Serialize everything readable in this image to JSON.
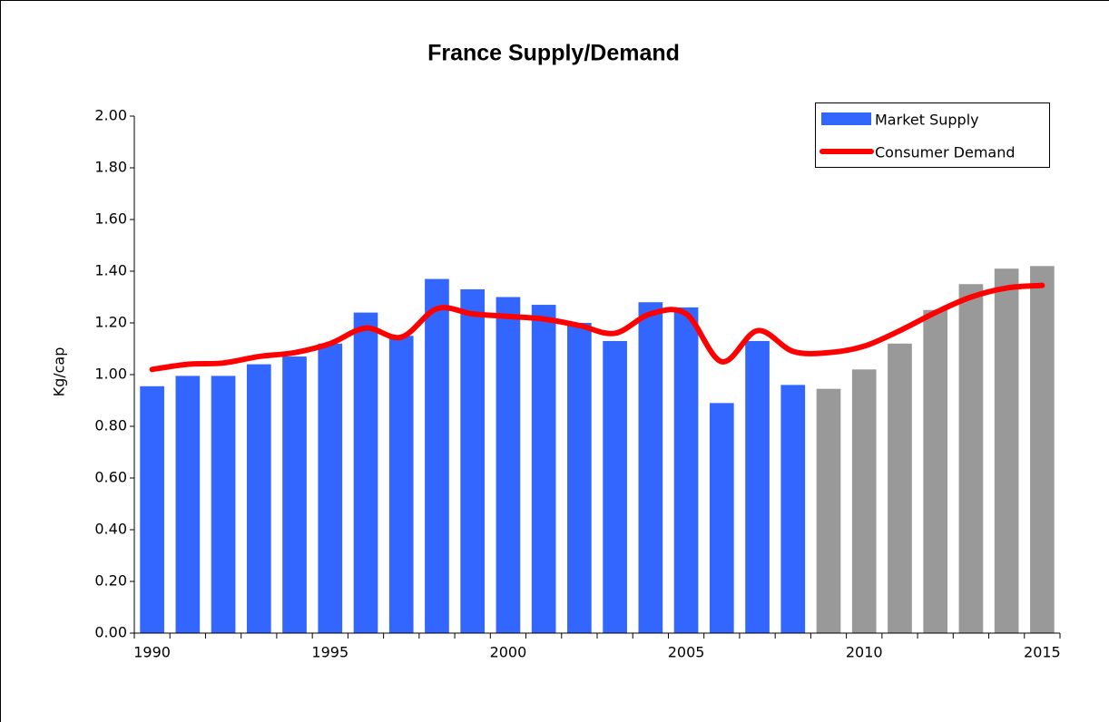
{
  "chart_data": {
    "type": "bar",
    "title": "France Supply/Demand",
    "y_label": "Kg/cap",
    "categories": [
      "1990",
      null,
      null,
      null,
      null,
      "1995",
      null,
      null,
      null,
      null,
      "2000",
      null,
      null,
      null,
      null,
      "2005",
      null,
      null,
      null,
      null,
      "2010",
      null,
      null,
      null,
      null,
      "2015"
    ],
    "series": [
      {
        "name": "Market Supply",
        "color": "#3366ff",
        "colors": [
          "#3366ff",
          "#3366ff",
          "#3366ff",
          "#3366ff",
          "#3366ff",
          "#3366ff",
          "#3366ff",
          "#3366ff",
          "#3366ff",
          "#3366ff",
          "#3366ff",
          "#3366ff",
          "#3366ff",
          "#3366ff",
          "#3366ff",
          "#3366ff",
          "#3366ff",
          "#3366ff",
          "#3366ff",
          "#999999",
          "#999999",
          "#999999",
          "#999999",
          "#999999",
          "#999999",
          "#999999"
        ],
        "values": [
          0.955,
          0.995,
          0.995,
          1.04,
          1.07,
          1.12,
          1.24,
          1.15,
          1.37,
          1.33,
          1.3,
          1.27,
          1.2,
          1.13,
          1.28,
          1.26,
          0.89,
          1.13,
          0.96,
          0.945,
          1.02,
          1.12,
          1.25,
          1.35,
          1.41,
          1.42
        ]
      },
      {
        "name": "Consumer Demand",
        "color": "#ff0000",
        "type": "line",
        "values": [
          1.02,
          1.04,
          1.045,
          1.07,
          1.085,
          1.12,
          1.18,
          1.145,
          1.255,
          1.235,
          1.225,
          1.215,
          1.19,
          1.16,
          1.235,
          1.235,
          1.05,
          1.17,
          1.09,
          1.085,
          1.11,
          1.17,
          1.24,
          1.3,
          1.335,
          1.345
        ]
      }
    ],
    "ylim": [
      0,
      2
    ],
    "yticks": [
      {
        "value": 0,
        "label": "0.00"
      },
      {
        "value": 0.2,
        "label": "0.20"
      },
      {
        "value": 0.4,
        "label": "0.40"
      },
      {
        "value": 0.6,
        "label": "0.60"
      },
      {
        "value": 0.8,
        "label": "0.80"
      },
      {
        "value": 1,
        "label": "1.00"
      },
      {
        "value": 1.2,
        "label": "1.20"
      },
      {
        "value": 1.4,
        "label": "1.40"
      },
      {
        "value": 1.6,
        "label": "1.60"
      },
      {
        "value": 1.8,
        "label": "1.80"
      },
      {
        "value": 2,
        "label": "2.00"
      }
    ],
    "grid": false,
    "legend": "top-right"
  }
}
